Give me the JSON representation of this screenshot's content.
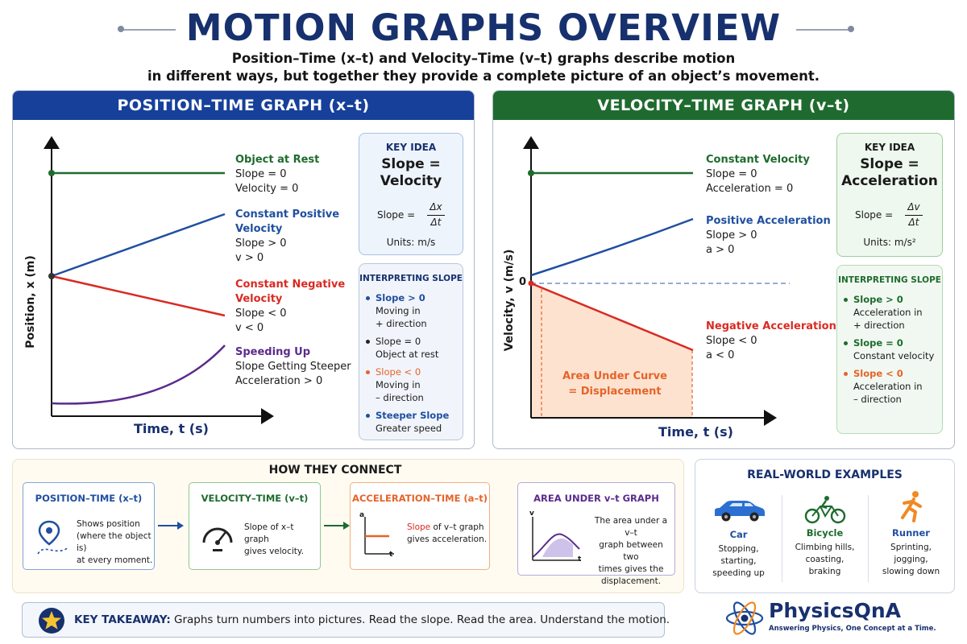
{
  "title": "MOTION GRAPHS OVERVIEW",
  "subtitle_line1": "Position–Time (x–t) and Velocity–Time (v–t) graphs describe motion",
  "subtitle_line2": "in different ways, but together they provide a complete picture of an object’s movement.",
  "colors": {
    "navy": "#17306e",
    "blue": "#1f4fa0",
    "green": "#1e6b2e",
    "red": "#d92a22",
    "purple": "#5b2b8c",
    "orange": "#e6632a"
  },
  "position_panel": {
    "header": "POSITION–TIME GRAPH (x–t)",
    "y_axis_label": "Position, x (m)",
    "x_axis_label": "Time, t (s)",
    "rest": {
      "title": "Object at Rest",
      "l1": "Slope = 0",
      "l2": "Velocity = 0"
    },
    "pos_vel": {
      "title1": "Constant Positive",
      "title2": "Velocity",
      "l1": "Slope > 0",
      "l2": "v > 0"
    },
    "neg_vel": {
      "title1": "Constant Negative",
      "title2": "Velocity",
      "l1": "Slope < 0",
      "l2": "v < 0"
    },
    "speeding": {
      "title": "Speeding Up",
      "l1": "Slope Getting Steeper",
      "l2": "Acceleration > 0"
    },
    "key_idea": {
      "head": "KEY IDEA",
      "big1": "Slope =",
      "big2": "Velocity",
      "formula_lhs": "Slope =",
      "num": "Δx",
      "den": "Δt",
      "units": "Units: m/s"
    },
    "interp": {
      "head": "INTERPRETING SLOPE",
      "r1a": "Slope > 0",
      "r1b": "Moving in",
      "r1c": "+ direction",
      "r2a": "Slope = 0",
      "r2b": "Object at rest",
      "r3a": "Slope < 0",
      "r3b": "Moving in",
      "r3c": "– direction",
      "r4a": "Steeper Slope",
      "r4b": "Greater speed"
    }
  },
  "velocity_panel": {
    "header": "VELOCITY–TIME GRAPH (v–t)",
    "y_axis_label": "Velocity, v (m/s)",
    "x_axis_label": "Time, t (s)",
    "zero": "0",
    "const": {
      "title": "Constant Velocity",
      "l1": "Slope = 0",
      "l2": "Acceleration = 0"
    },
    "pos_acc": {
      "title": "Positive Acceleration",
      "l1": "Slope > 0",
      "l2": "a > 0"
    },
    "neg_acc": {
      "title": "Negative Acceleration",
      "l1": "Slope < 0",
      "l2": "a < 0"
    },
    "area1": "Area Under Curve",
    "area2": "= Displacement",
    "key_idea": {
      "head": "KEY IDEA",
      "big1": "Slope =",
      "big2": "Acceleration",
      "formula_lhs": "Slope =",
      "num": "Δv",
      "den": "Δt",
      "units": "Units: m/s²"
    },
    "interp": {
      "head": "INTERPRETING SLOPE",
      "r1a": "Slope > 0",
      "r1b": "Acceleration in",
      "r1c": "+ direction",
      "r2a": "Slope = 0",
      "r2b": "Constant velocity",
      "r3a": "Slope < 0",
      "r3b": "Acceleration in",
      "r3c": "– direction"
    }
  },
  "connect": {
    "title": "HOW THEY CONNECT",
    "c1": {
      "title": "POSITION–TIME (x–t)",
      "t1": "Shows position",
      "t2": "(where the object is)",
      "t3": "at every moment."
    },
    "c2": {
      "title": "VELOCITY–TIME (v–t)",
      "t1": "Slope of x–t graph",
      "t2": "gives velocity."
    },
    "c3": {
      "title": "ACCELERATION–TIME (a–t)",
      "t1a": "Slope",
      "t1b": " of v–t graph",
      "t2": "gives acceleration.",
      "ax_y": "a",
      "ax_x": "t"
    },
    "c4": {
      "title": "AREA UNDER v–t GRAPH",
      "t1": "The area under a v–t",
      "t2": "graph between two",
      "t3": "times gives the",
      "t4": "displacement.",
      "ax_y": "v",
      "ax_x": "t"
    }
  },
  "examples": {
    "title": "REAL-WORLD EXAMPLES",
    "items": [
      {
        "name": "Car",
        "l1": "Stopping,",
        "l2": "starting,",
        "l3": "speeding up",
        "icon": "car-icon"
      },
      {
        "name": "Bicycle",
        "l1": "Climbing hills,",
        "l2": "coasting,",
        "l3": "braking",
        "icon": "bicycle-icon"
      },
      {
        "name": "Runner",
        "l1": "Sprinting,",
        "l2": "jogging,",
        "l3": "slowing down",
        "icon": "runner-icon"
      }
    ]
  },
  "takeaway": {
    "label": "KEY TAKEAWAY:",
    "text": " Graphs turn numbers into pictures. Read the slope. Read the area. Understand the motion."
  },
  "brand": {
    "name": "PhysicsQnA",
    "tagline": "Answering Physics, One Concept at a Time."
  }
}
